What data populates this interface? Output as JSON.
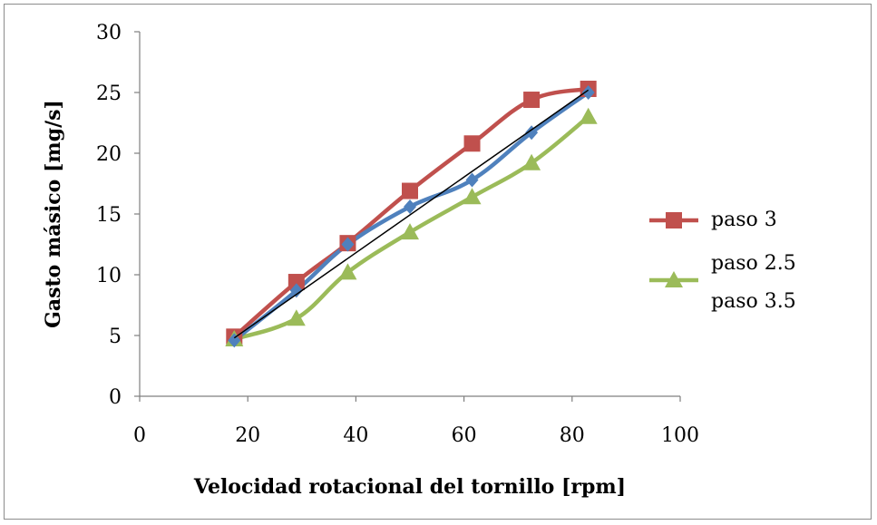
{
  "chart_data": {
    "type": "line",
    "xlabel": "Velocidad rotacional del tornillo [rpm]",
    "ylabel": "Gasto másico [mg/s]",
    "xlim": [
      0,
      100
    ],
    "ylim": [
      0,
      30
    ],
    "xticks": [
      0,
      20,
      40,
      60,
      80,
      100
    ],
    "yticks": [
      0,
      5,
      10,
      15,
      20,
      25,
      30
    ],
    "grid": false,
    "legend_position": "right",
    "series": [
      {
        "name": "paso 3",
        "color": "#C0504D",
        "marker": "square",
        "x": [
          17.5,
          29,
          38.5,
          50,
          61.5,
          72.5,
          83
        ],
        "y": [
          4.9,
          9.4,
          12.6,
          16.9,
          20.8,
          24.4,
          25.3
        ]
      },
      {
        "name": "paso 2.5",
        "color": "#9BBB59",
        "marker": "triangle",
        "x": [
          17.5,
          29,
          38.5,
          50,
          61.5,
          72.5,
          83
        ],
        "y": [
          4.7,
          6.4,
          10.2,
          13.5,
          16.4,
          19.2,
          23.0
        ]
      },
      {
        "name": "paso 3.5",
        "color": "#4F81BD",
        "marker": "diamond",
        "x": [
          17.5,
          29,
          38.5,
          50,
          61.5,
          72.5,
          83
        ],
        "y": [
          4.6,
          8.7,
          12.5,
          15.6,
          17.8,
          21.7,
          25.0
        ]
      }
    ],
    "trendline": {
      "color": "#000000",
      "x": [
        17.5,
        83
      ],
      "y": [
        4.8,
        25.2
      ]
    }
  }
}
